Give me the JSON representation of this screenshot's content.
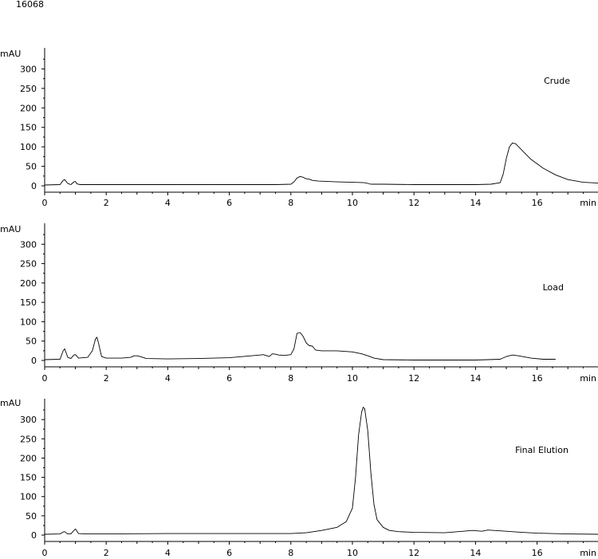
{
  "sample_id": "16068",
  "chart_data": [
    {
      "type": "line",
      "title": "Crude",
      "ylabel": "mAU",
      "xlabel": "min",
      "xlim": [
        0,
        18
      ],
      "ylim": [
        0,
        350
      ],
      "xticks": [
        "0",
        "2",
        "4",
        "6",
        "8",
        "10",
        "12",
        "14",
        "16"
      ],
      "yticks": [
        "0",
        "50",
        "100",
        "150",
        "200",
        "250",
        "300"
      ],
      "series": [
        {
          "x": [
            0,
            0.5,
            0.6,
            0.65,
            0.75,
            0.85,
            0.95,
            1.0,
            1.05,
            1.15,
            1.3,
            2,
            4,
            6,
            7.5,
            8.0,
            8.1,
            8.2,
            8.3,
            8.4,
            8.5,
            8.6,
            8.7,
            8.9,
            9.5,
            10.0,
            10.4,
            10.6,
            11,
            12,
            13,
            14,
            14.5,
            14.8,
            14.9,
            15.0,
            15.1,
            15.2,
            15.3,
            15.5,
            15.8,
            16.2,
            16.6,
            17.0,
            17.5,
            18
          ],
          "y": [
            2,
            3,
            14,
            16,
            6,
            3,
            10,
            11,
            5,
            3,
            3,
            3,
            3,
            3,
            3,
            4,
            10,
            20,
            24,
            22,
            18,
            17,
            14,
            12,
            10,
            9,
            8,
            4,
            4,
            3,
            3,
            3,
            4,
            8,
            30,
            70,
            100,
            110,
            108,
            92,
            68,
            45,
            28,
            16,
            9,
            7
          ]
        }
      ]
    },
    {
      "type": "line",
      "title": "Load",
      "ylabel": "mAU",
      "xlabel": "min",
      "xlim": [
        0,
        18
      ],
      "ylim": [
        0,
        350
      ],
      "xticks": [
        "0",
        "2",
        "4",
        "6",
        "8",
        "10",
        "12",
        "14",
        "16"
      ],
      "yticks": [
        "0",
        "50",
        "100",
        "150",
        "200",
        "250",
        "300"
      ],
      "series": [
        {
          "x": [
            0,
            0.5,
            0.6,
            0.65,
            0.75,
            0.85,
            0.95,
            1.0,
            1.1,
            1.4,
            1.55,
            1.65,
            1.7,
            1.75,
            1.85,
            2.0,
            2.5,
            2.8,
            2.9,
            3.0,
            3.1,
            3.3,
            4,
            5,
            6,
            7.0,
            7.1,
            7.3,
            7.4,
            7.5,
            7.6,
            7.8,
            8.0,
            8.1,
            8.2,
            8.3,
            8.4,
            8.5,
            8.6,
            8.7,
            8.8,
            9.0,
            9.5,
            10.0,
            10.3,
            10.5,
            10.7,
            11,
            12,
            13,
            14,
            14.8,
            15.0,
            15.2,
            15.4,
            15.8,
            16.2,
            16.6
          ],
          "y": [
            2,
            3,
            25,
            30,
            8,
            5,
            14,
            15,
            6,
            8,
            25,
            55,
            60,
            45,
            10,
            6,
            6,
            8,
            12,
            12,
            10,
            5,
            4,
            5,
            7,
            14,
            15,
            10,
            17,
            16,
            14,
            13,
            15,
            30,
            70,
            72,
            62,
            45,
            38,
            37,
            27,
            25,
            25,
            22,
            17,
            12,
            6,
            2,
            1,
            1,
            1,
            3,
            10,
            14,
            12,
            6,
            3,
            3
          ]
        }
      ]
    },
    {
      "type": "line",
      "title": "Final Elution",
      "ylabel": "mAU",
      "xlabel": "min",
      "xlim": [
        0,
        18
      ],
      "ylim": [
        0,
        350
      ],
      "xticks": [
        "0",
        "2",
        "4",
        "6",
        "8",
        "10",
        "12",
        "14",
        "16"
      ],
      "yticks": [
        "0",
        "50",
        "100",
        "150",
        "200",
        "250",
        "300"
      ],
      "series": [
        {
          "x": [
            0,
            0.5,
            0.6,
            0.65,
            0.75,
            0.85,
            0.95,
            1.0,
            1.1,
            1.3,
            2,
            4,
            6,
            8.0,
            8.5,
            9.0,
            9.5,
            9.8,
            10.0,
            10.1,
            10.2,
            10.3,
            10.35,
            10.4,
            10.5,
            10.6,
            10.7,
            10.8,
            11.0,
            11.2,
            11.5,
            12,
            13,
            13.6,
            13.9,
            14.2,
            14.4,
            14.6,
            15,
            15.5,
            16,
            17,
            18
          ],
          "y": [
            2,
            3,
            8,
            9,
            3,
            3,
            12,
            16,
            4,
            3,
            3,
            4,
            4,
            4,
            6,
            12,
            20,
            35,
            70,
            150,
            260,
            320,
            332,
            328,
            270,
            160,
            80,
            40,
            20,
            12,
            9,
            7,
            6,
            10,
            12,
            10,
            13,
            12,
            10,
            7,
            5,
            3,
            2
          ]
        }
      ]
    }
  ]
}
